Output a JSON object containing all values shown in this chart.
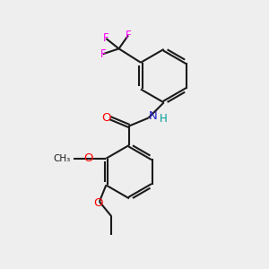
{
  "bg_color": "#eeeeee",
  "bond_color": "#1a1a1a",
  "atom_colors": {
    "O": "#ff0000",
    "N": "#2222cc",
    "F": "#ff00ff",
    "H": "#009999",
    "C": "#1a1a1a"
  },
  "lw": 1.5,
  "dbo": 0.055,
  "figsize": [
    3.0,
    3.0
  ],
  "dpi": 100
}
